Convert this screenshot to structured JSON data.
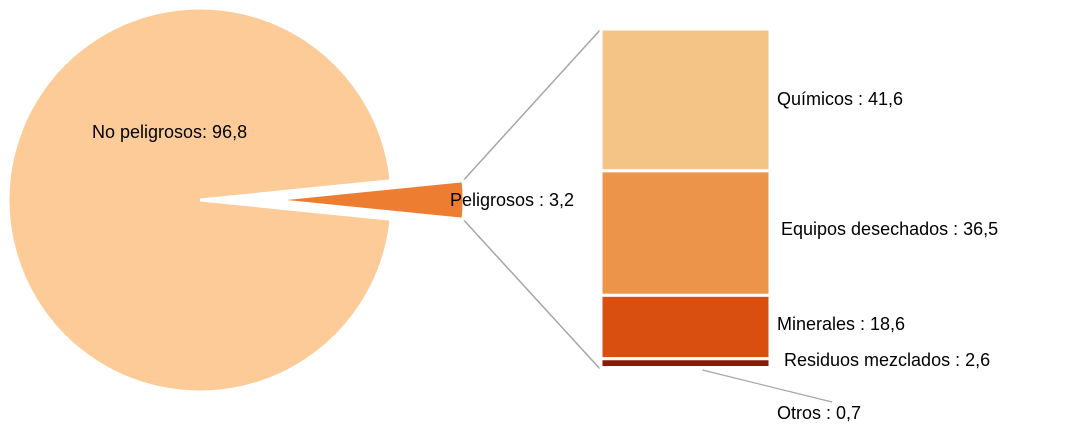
{
  "chart_data": {
    "type": "bar-of-pie",
    "pie": {
      "slices": [
        {
          "label": "No peligrosos: 96,8",
          "value": 96.8,
          "color": "#FDCB98"
        },
        {
          "label": "Peligrosos : 3,2",
          "value": 3.2,
          "color": "#ED7D31"
        }
      ]
    },
    "bar": {
      "segments": [
        {
          "label": "Químicos : 41,6",
          "value": 41.6,
          "color": "#F4C487"
        },
        {
          "label": "Equipos desechados : 36,5",
          "value": 36.5,
          "color": "#EC9449"
        },
        {
          "label": "Minerales : 18,6",
          "value": 18.6,
          "color": "#D84F0F"
        },
        {
          "label": "Residuos mezclados : 2,6",
          "value": 2.6,
          "color": "#8B1A06"
        },
        {
          "label": "Otros : 0,7",
          "value": 0.7,
          "color": "#4A0A0A"
        }
      ]
    }
  }
}
